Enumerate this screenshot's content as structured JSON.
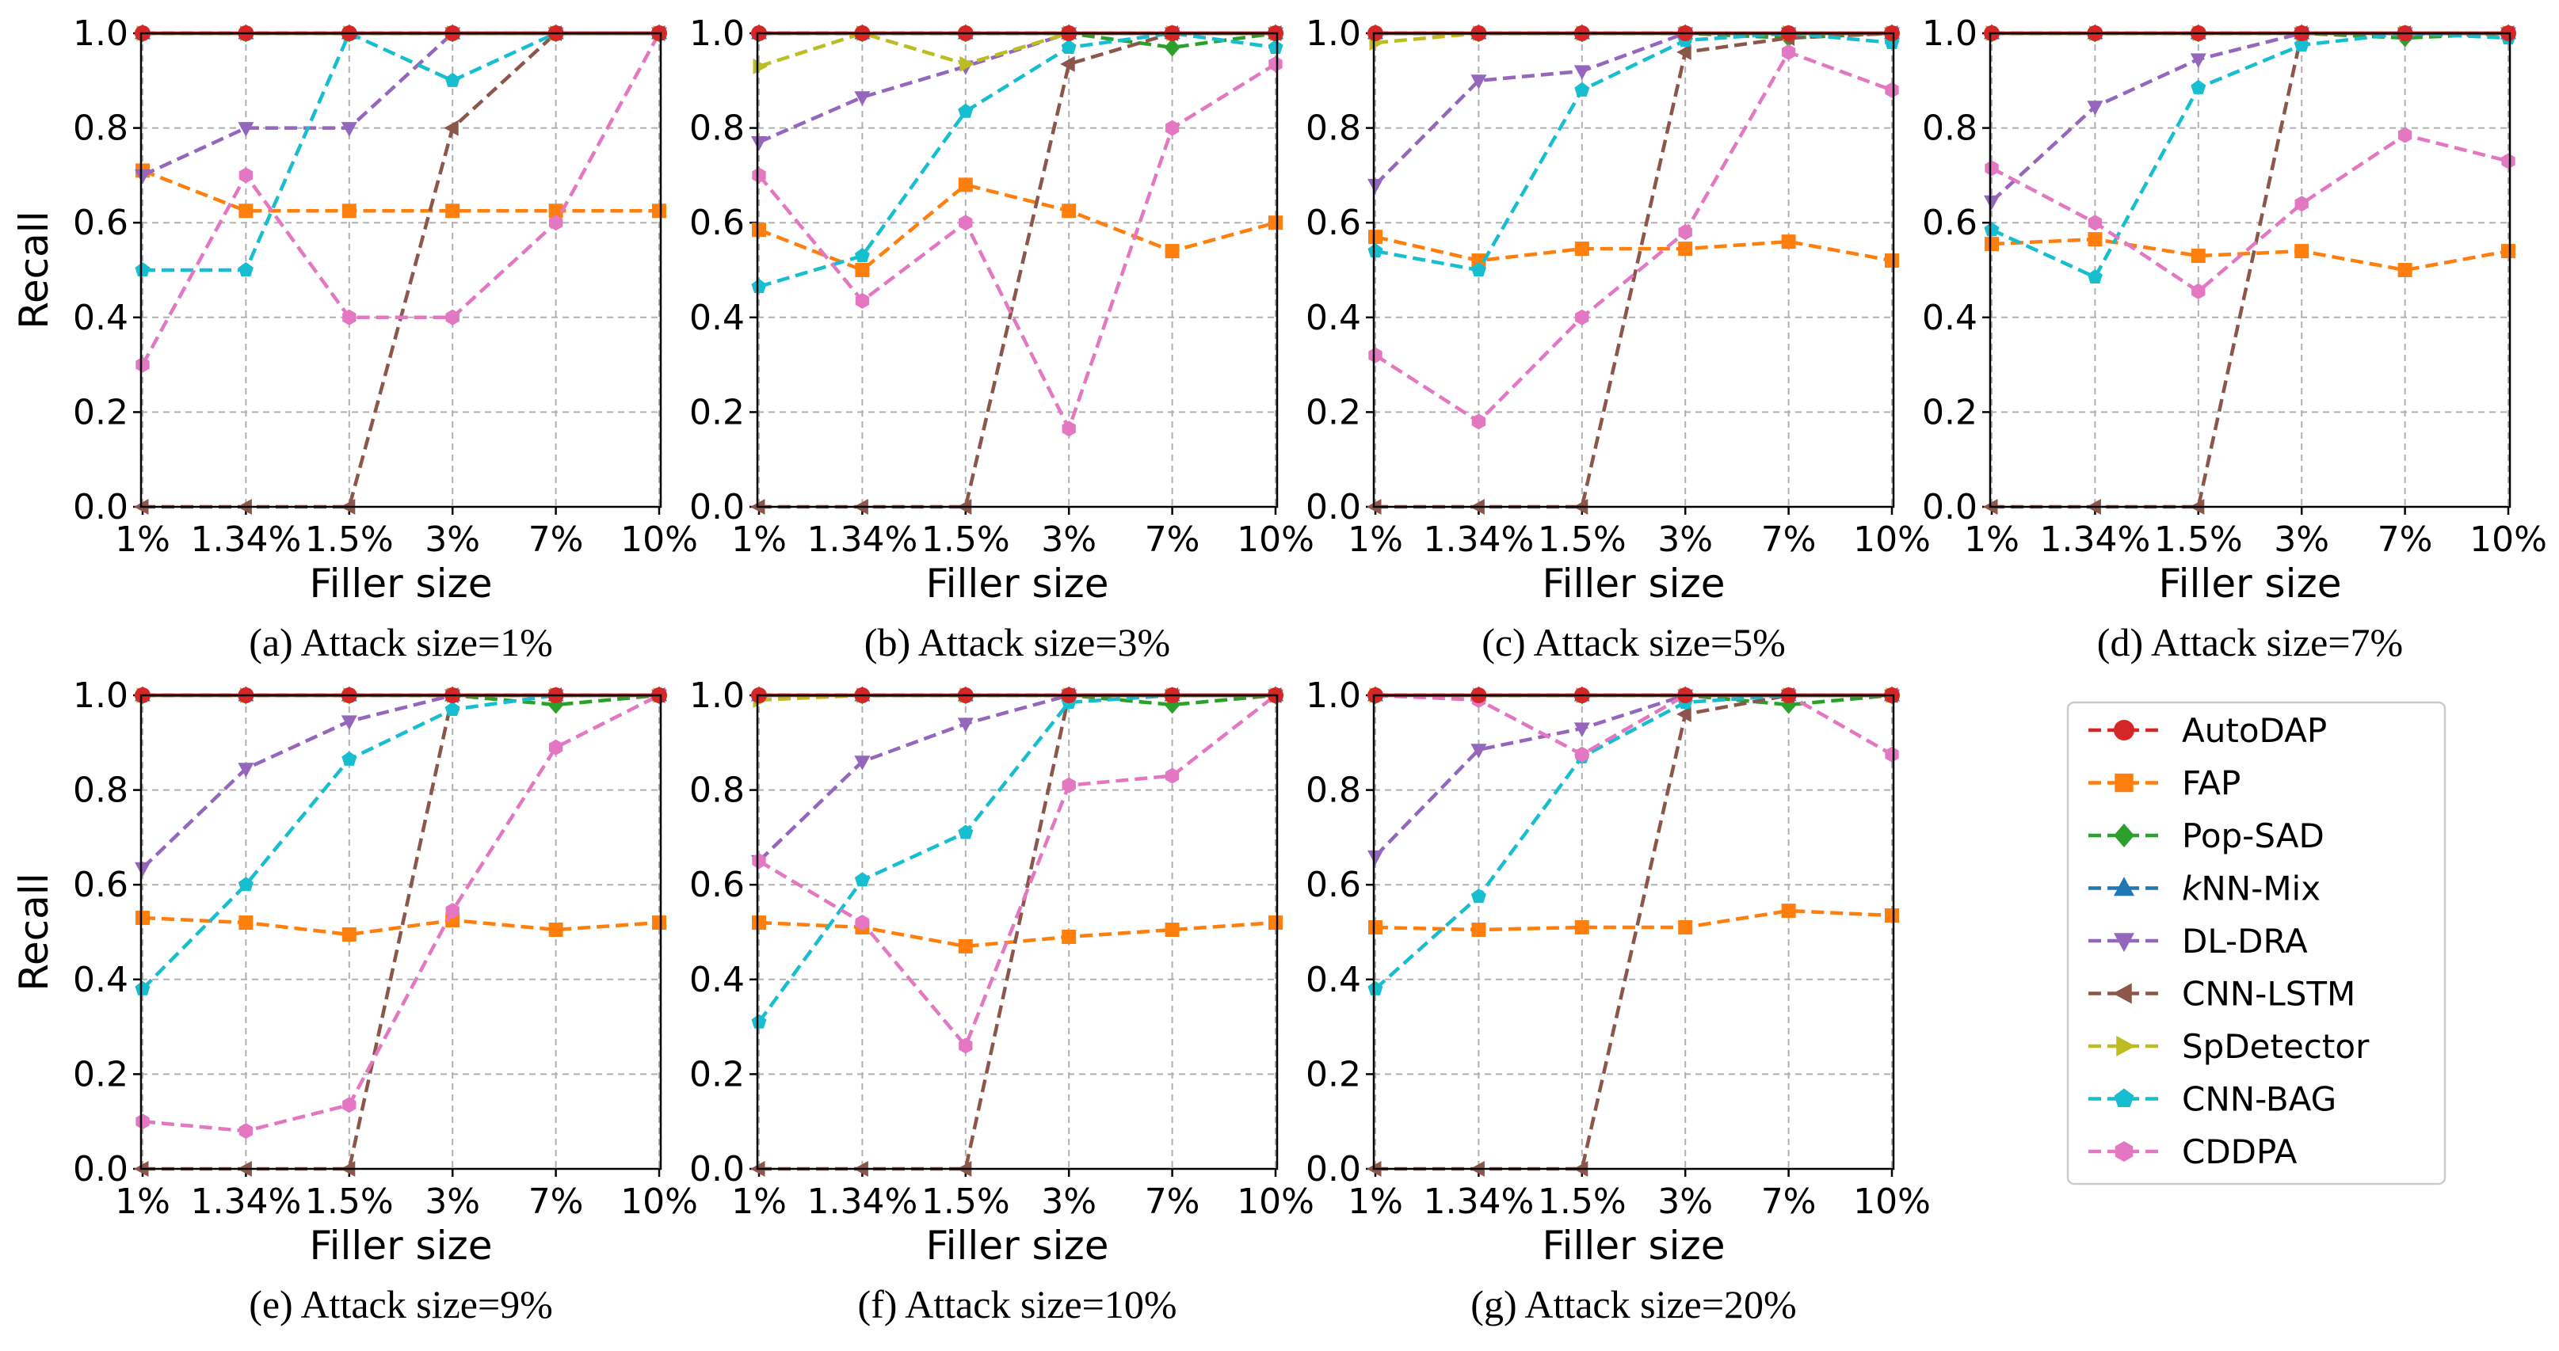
{
  "figure": {
    "shared_x_label": "Filler size",
    "shared_y_label": "Recall"
  },
  "legend": [
    {
      "name": "AutoDAP",
      "color": "#d62728",
      "marker": "circle",
      "dashed": false
    },
    {
      "name": "FAP",
      "color": "#ff7f0e",
      "marker": "square",
      "dashed": true
    },
    {
      "name": "Pop-SAD",
      "color": "#2ca02c",
      "marker": "diamond",
      "dashed": true
    },
    {
      "name": "kNN-Mix",
      "color": "#1f77b4",
      "marker": "triangle-up",
      "dashed": true,
      "italic_prefix": "k",
      "rest": "NN-Mix"
    },
    {
      "name": "DL-DRA",
      "color": "#9467bd",
      "marker": "triangle-down",
      "dashed": true
    },
    {
      "name": "CNN-LSTM",
      "color": "#8c564b",
      "marker": "triangle-left",
      "dashed": true
    },
    {
      "name": "SpDetector",
      "color": "#bcbd22",
      "marker": "triangle-right",
      "dashed": true
    },
    {
      "name": "CNN-BAG",
      "color": "#17becf",
      "marker": "pentagon",
      "dashed": true
    },
    {
      "name": "CDDPA",
      "color": "#e377c2",
      "marker": "hexagon",
      "dashed": true
    }
  ],
  "chart_data": [
    {
      "type": "line",
      "title": "(a) Attack size=1%",
      "xlabel": "Filler size",
      "ylabel": "Recall",
      "categories": [
        "1%",
        "1.34%",
        "1.5%",
        "3%",
        "7%",
        "10%"
      ],
      "ylim": [
        0,
        1
      ],
      "yticks": [
        "0.0",
        "0.2",
        "0.4",
        "0.6",
        "0.8",
        "1.0"
      ],
      "grid": true,
      "series": [
        {
          "name": "AutoDAP",
          "values": [
            1,
            1,
            1,
            1,
            1,
            1
          ]
        },
        {
          "name": "FAP",
          "values": [
            0.71,
            0.625,
            0.625,
            0.625,
            0.625,
            0.625
          ]
        },
        {
          "name": "Pop-SAD",
          "values": [
            1,
            1,
            1,
            1,
            1,
            1
          ]
        },
        {
          "name": "kNN-Mix",
          "values": [
            1,
            1,
            1,
            1,
            1,
            1
          ]
        },
        {
          "name": "DL-DRA",
          "values": [
            0.7,
            0.8,
            0.8,
            1,
            1,
            1
          ]
        },
        {
          "name": "CNN-LSTM",
          "values": [
            0,
            0,
            0,
            0.8,
            1,
            1
          ]
        },
        {
          "name": "SpDetector",
          "values": [
            1,
            1,
            1,
            1,
            1,
            1
          ]
        },
        {
          "name": "CNN-BAG",
          "values": [
            0.5,
            0.5,
            1,
            0.9,
            1,
            1
          ]
        },
        {
          "name": "CDDPA",
          "values": [
            0.3,
            0.7,
            0.4,
            0.4,
            0.6,
            1
          ]
        }
      ]
    },
    {
      "type": "line",
      "title": "(b) Attack size=3%",
      "xlabel": "Filler size",
      "ylabel": "",
      "categories": [
        "1%",
        "1.34%",
        "1.5%",
        "3%",
        "7%",
        "10%"
      ],
      "ylim": [
        0,
        1
      ],
      "yticks": [
        "0.0",
        "0.2",
        "0.4",
        "0.6",
        "0.8",
        "1.0"
      ],
      "grid": true,
      "series": [
        {
          "name": "AutoDAP",
          "values": [
            1,
            1,
            1,
            1,
            1,
            1
          ]
        },
        {
          "name": "FAP",
          "values": [
            0.585,
            0.5,
            0.68,
            0.625,
            0.54,
            0.6
          ]
        },
        {
          "name": "Pop-SAD",
          "values": [
            1,
            1,
            1,
            1,
            0.97,
            1
          ]
        },
        {
          "name": "kNN-Mix",
          "values": [
            1,
            1,
            1,
            1,
            1,
            1
          ]
        },
        {
          "name": "DL-DRA",
          "values": [
            0.77,
            0.865,
            0.93,
            1,
            1,
            1
          ]
        },
        {
          "name": "CNN-LSTM",
          "values": [
            0,
            0,
            0,
            0.935,
            1,
            1
          ]
        },
        {
          "name": "SpDetector",
          "values": [
            0.93,
            1,
            0.935,
            1,
            1,
            1
          ]
        },
        {
          "name": "CNN-BAG",
          "values": [
            0.465,
            0.53,
            0.835,
            0.97,
            1,
            0.97
          ]
        },
        {
          "name": "CDDPA",
          "values": [
            0.7,
            0.435,
            0.6,
            0.165,
            0.8,
            0.935
          ]
        }
      ]
    },
    {
      "type": "line",
      "title": "(c) Attack size=5%",
      "xlabel": "Filler size",
      "ylabel": "",
      "categories": [
        "1%",
        "1.34%",
        "1.5%",
        "3%",
        "7%",
        "10%"
      ],
      "ylim": [
        0,
        1
      ],
      "yticks": [
        "0.0",
        "0.2",
        "0.4",
        "0.6",
        "0.8",
        "1.0"
      ],
      "grid": true,
      "series": [
        {
          "name": "AutoDAP",
          "values": [
            1,
            1,
            1,
            1,
            1,
            1
          ]
        },
        {
          "name": "FAP",
          "values": [
            0.57,
            0.52,
            0.545,
            0.545,
            0.56,
            0.52
          ]
        },
        {
          "name": "Pop-SAD",
          "values": [
            1,
            1,
            1,
            1,
            0.99,
            1
          ]
        },
        {
          "name": "kNN-Mix",
          "values": [
            1,
            1,
            1,
            1,
            1,
            1
          ]
        },
        {
          "name": "DL-DRA",
          "values": [
            0.68,
            0.9,
            0.92,
            1,
            1,
            1
          ]
        },
        {
          "name": "CNN-LSTM",
          "values": [
            0,
            0,
            0,
            0.96,
            0.99,
            1
          ]
        },
        {
          "name": "SpDetector",
          "values": [
            0.98,
            1,
            1,
            1,
            1,
            1
          ]
        },
        {
          "name": "CNN-BAG",
          "values": [
            0.54,
            0.5,
            0.88,
            0.985,
            1,
            0.98
          ]
        },
        {
          "name": "CDDPA",
          "values": [
            0.32,
            0.18,
            0.4,
            0.58,
            0.96,
            0.88
          ]
        }
      ]
    },
    {
      "type": "line",
      "title": "(d) Attack size=7%",
      "xlabel": "Filler size",
      "ylabel": "",
      "categories": [
        "1%",
        "1.34%",
        "1.5%",
        "3%",
        "7%",
        "10%"
      ],
      "ylim": [
        0,
        1
      ],
      "yticks": [
        "0.0",
        "0.2",
        "0.4",
        "0.6",
        "0.8",
        "1.0"
      ],
      "grid": true,
      "series": [
        {
          "name": "AutoDAP",
          "values": [
            1,
            1,
            1,
            1,
            1,
            1
          ]
        },
        {
          "name": "FAP",
          "values": [
            0.555,
            0.565,
            0.53,
            0.54,
            0.5,
            0.54
          ]
        },
        {
          "name": "Pop-SAD",
          "values": [
            1,
            1,
            1,
            1,
            0.99,
            1
          ]
        },
        {
          "name": "kNN-Mix",
          "values": [
            1,
            1,
            1,
            1,
            1,
            1
          ]
        },
        {
          "name": "DL-DRA",
          "values": [
            0.645,
            0.845,
            0.945,
            1,
            1,
            1
          ]
        },
        {
          "name": "CNN-LSTM",
          "values": [
            0,
            0,
            0,
            1,
            1,
            1
          ]
        },
        {
          "name": "SpDetector",
          "values": [
            1,
            1,
            1,
            1,
            1,
            1
          ]
        },
        {
          "name": "CNN-BAG",
          "values": [
            0.585,
            0.485,
            0.885,
            0.975,
            1,
            0.99
          ]
        },
        {
          "name": "CDDPA",
          "values": [
            0.715,
            0.6,
            0.455,
            0.64,
            0.785,
            0.73
          ]
        }
      ]
    },
    {
      "type": "line",
      "title": "(e) Attack size=9%",
      "xlabel": "Filler size",
      "ylabel": "Recall",
      "categories": [
        "1%",
        "1.34%",
        "1.5%",
        "3%",
        "7%",
        "10%"
      ],
      "ylim": [
        0,
        1
      ],
      "yticks": [
        "0.0",
        "0.2",
        "0.4",
        "0.6",
        "0.8",
        "1.0"
      ],
      "grid": true,
      "series": [
        {
          "name": "AutoDAP",
          "values": [
            1,
            1,
            1,
            1,
            1,
            1
          ]
        },
        {
          "name": "FAP",
          "values": [
            0.53,
            0.52,
            0.495,
            0.525,
            0.505,
            0.52
          ]
        },
        {
          "name": "Pop-SAD",
          "values": [
            1,
            1,
            1,
            1,
            0.98,
            1
          ]
        },
        {
          "name": "kNN-Mix",
          "values": [
            1,
            1,
            1,
            1,
            1,
            1
          ]
        },
        {
          "name": "DL-DRA",
          "values": [
            0.635,
            0.845,
            0.945,
            1,
            1,
            1
          ]
        },
        {
          "name": "CNN-LSTM",
          "values": [
            0,
            0,
            0,
            1,
            1,
            1
          ]
        },
        {
          "name": "SpDetector",
          "values": [
            1,
            1,
            1,
            1,
            1,
            1
          ]
        },
        {
          "name": "CNN-BAG",
          "values": [
            0.38,
            0.6,
            0.865,
            0.97,
            1,
            1
          ]
        },
        {
          "name": "CDDPA",
          "values": [
            0.1,
            0.08,
            0.135,
            0.545,
            0.89,
            1
          ]
        }
      ]
    },
    {
      "type": "line",
      "title": "(f) Attack size=10%",
      "xlabel": "Filler size",
      "ylabel": "",
      "categories": [
        "1%",
        "1.34%",
        "1.5%",
        "3%",
        "7%",
        "10%"
      ],
      "ylim": [
        0,
        1
      ],
      "yticks": [
        "0.0",
        "0.2",
        "0.4",
        "0.6",
        "0.8",
        "1.0"
      ],
      "grid": true,
      "series": [
        {
          "name": "AutoDAP",
          "values": [
            1,
            1,
            1,
            1,
            1,
            1
          ]
        },
        {
          "name": "FAP",
          "values": [
            0.52,
            0.51,
            0.47,
            0.49,
            0.505,
            0.52
          ]
        },
        {
          "name": "Pop-SAD",
          "values": [
            1,
            1,
            1,
            1,
            0.98,
            1
          ]
        },
        {
          "name": "kNN-Mix",
          "values": [
            1,
            1,
            1,
            1,
            1,
            1
          ]
        },
        {
          "name": "DL-DRA",
          "values": [
            0.65,
            0.86,
            0.94,
            1,
            1,
            1
          ]
        },
        {
          "name": "CNN-LSTM",
          "values": [
            0,
            0,
            0,
            1,
            1,
            1
          ]
        },
        {
          "name": "SpDetector",
          "values": [
            0.99,
            1,
            1,
            1,
            1,
            1
          ]
        },
        {
          "name": "CNN-BAG",
          "values": [
            0.31,
            0.61,
            0.71,
            0.985,
            1,
            1
          ]
        },
        {
          "name": "CDDPA",
          "values": [
            0.65,
            0.52,
            0.26,
            0.81,
            0.83,
            1
          ]
        }
      ]
    },
    {
      "type": "line",
      "title": "(g) Attack size=20%",
      "xlabel": "Filler size",
      "ylabel": "",
      "categories": [
        "1%",
        "1.34%",
        "1.5%",
        "3%",
        "7%",
        "10%"
      ],
      "ylim": [
        0,
        1
      ],
      "yticks": [
        "0.0",
        "0.2",
        "0.4",
        "0.6",
        "0.8",
        "1.0"
      ],
      "grid": true,
      "series": [
        {
          "name": "AutoDAP",
          "values": [
            1,
            1,
            1,
            1,
            1,
            1
          ]
        },
        {
          "name": "FAP",
          "values": [
            0.51,
            0.505,
            0.51,
            0.51,
            0.545,
            0.535
          ]
        },
        {
          "name": "Pop-SAD",
          "values": [
            1,
            1,
            1,
            1,
            0.98,
            1
          ]
        },
        {
          "name": "kNN-Mix",
          "values": [
            1,
            1,
            1,
            1,
            1,
            1
          ]
        },
        {
          "name": "DL-DRA",
          "values": [
            0.66,
            0.885,
            0.93,
            1,
            1,
            1
          ]
        },
        {
          "name": "CNN-LSTM",
          "values": [
            0,
            0,
            0,
            0.96,
            1,
            1
          ]
        },
        {
          "name": "SpDetector",
          "values": [
            1,
            1,
            1,
            1,
            1,
            1
          ]
        },
        {
          "name": "CNN-BAG",
          "values": [
            0.38,
            0.575,
            0.87,
            0.985,
            1,
            1
          ]
        },
        {
          "name": "CDDPA",
          "values": [
            1,
            0.99,
            0.875,
            1,
            1,
            0.875
          ]
        }
      ]
    }
  ]
}
